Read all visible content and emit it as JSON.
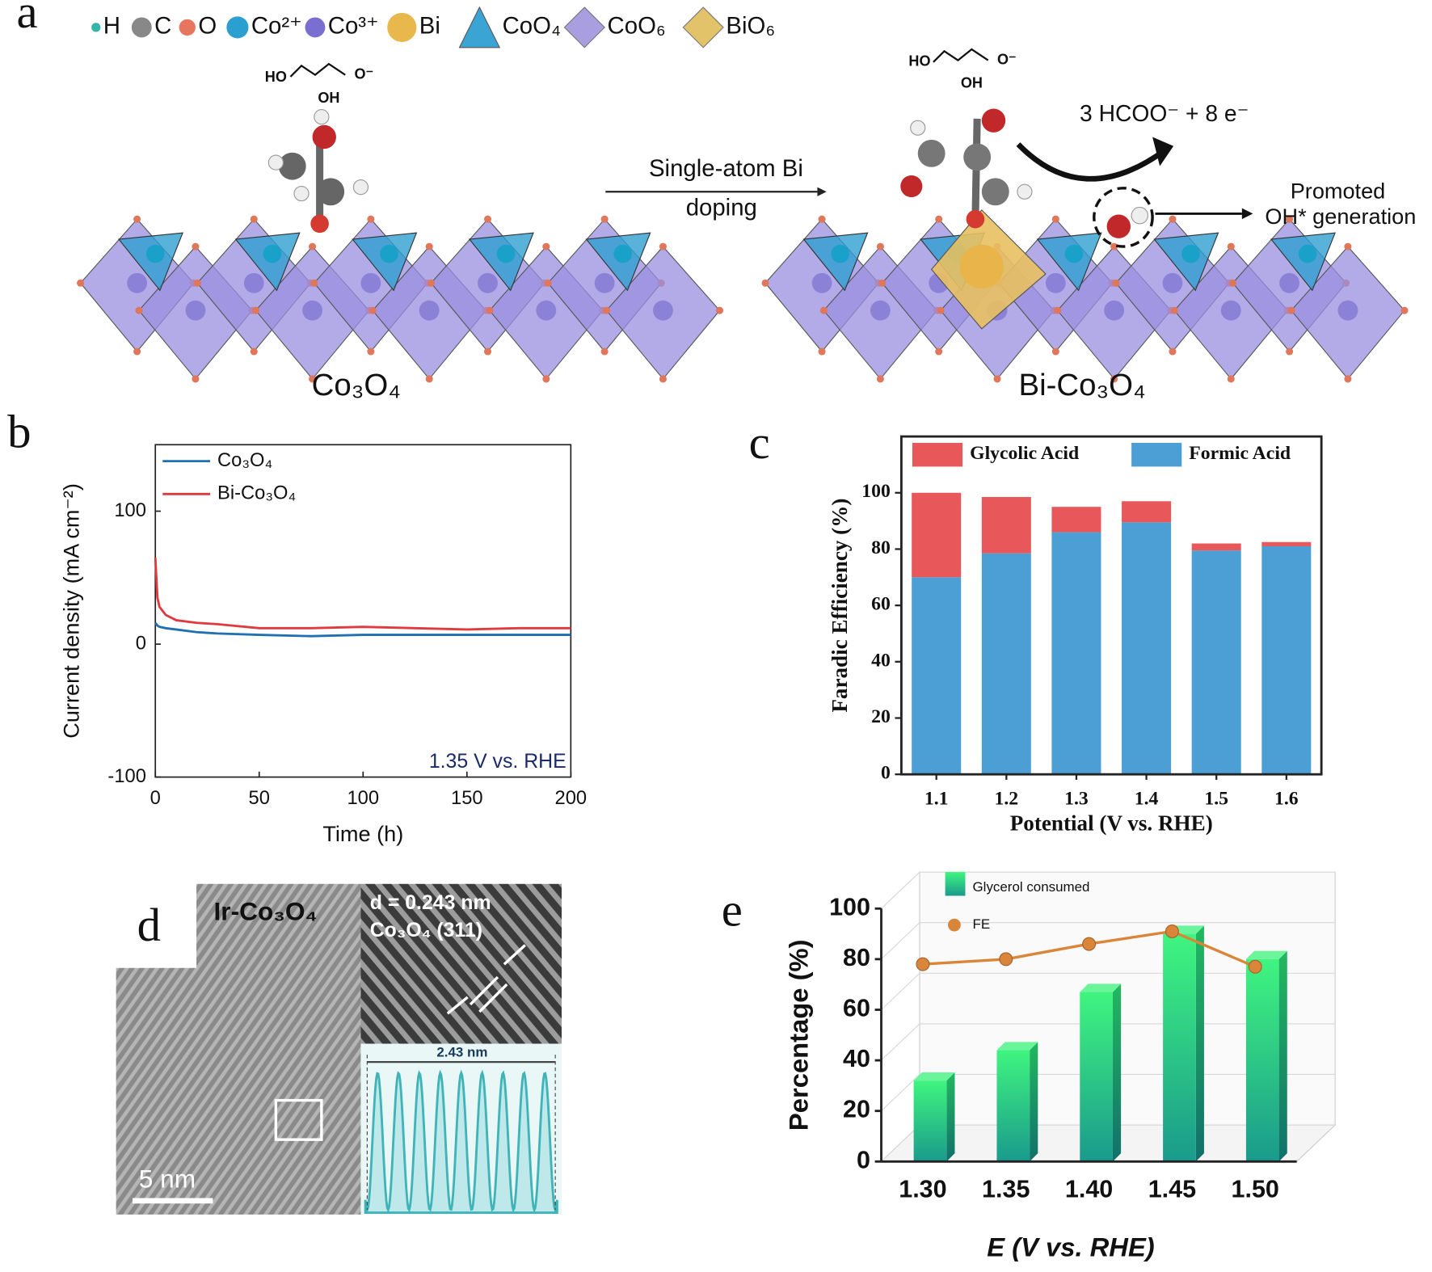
{
  "figure": {
    "panel_labels": [
      "a",
      "b",
      "c",
      "d",
      "e"
    ]
  },
  "panel_a": {
    "legend": [
      "H",
      "C",
      "O",
      "Co²⁺",
      "Co³⁺",
      "Bi",
      "CoO₄",
      "CoO₆",
      "BiO₆"
    ],
    "molecule": [
      "HO",
      "OH",
      "O⁻"
    ],
    "left_label": "Co₃O₄",
    "right_label": "Bi-Co₃O₄",
    "arrow_label": [
      "Single-atom Bi",
      "doping"
    ],
    "product": "3 HCOO⁻ + 8 e⁻",
    "note": [
      "Promoted",
      "OH* generation"
    ]
  },
  "panel_d": {
    "labels": [
      "Ir-Co₃O₄",
      "d = 0.243 nm",
      "Co₃O₄ (311)",
      "2.43 nm",
      "5 nm"
    ]
  },
  "chart_data": [
    {
      "type": "line",
      "xlabel": "Time (h)",
      "ylabel": "Current density (mA cm⁻²)",
      "annotation": "1.35 V vs. RHE",
      "x": [
        0,
        1,
        2,
        5,
        10,
        20,
        30,
        50,
        75,
        100,
        125,
        150,
        175,
        200
      ],
      "xlim": [
        0,
        200
      ],
      "xticks": [
        0,
        50,
        100,
        150,
        200
      ],
      "ylim": [
        -100,
        150
      ],
      "yticks": [
        -100,
        0,
        100
      ],
      "legend": "upper left",
      "series": [
        {
          "name": "Co₃O₄",
          "color": "#1f6fb2",
          "values": [
            16,
            14,
            13,
            12,
            11,
            9,
            8,
            7,
            6,
            7,
            7,
            7,
            7,
            7
          ]
        },
        {
          "name": "Bi-Co₃O₄",
          "color": "#e03a3e",
          "values": [
            65,
            35,
            28,
            22,
            18,
            16,
            15,
            12,
            12,
            13,
            12,
            11,
            12,
            12
          ]
        }
      ]
    },
    {
      "type": "stacked_bar",
      "xlabel": "Potential (V vs. RHE)",
      "ylabel": "Faradic Efficiency (%)",
      "categories": [
        "1.1",
        "1.2",
        "1.3",
        "1.4",
        "1.5",
        "1.6"
      ],
      "ylim": [
        0,
        120
      ],
      "yticks": [
        0,
        20,
        40,
        60,
        80,
        100
      ],
      "legend": "top",
      "series": [
        {
          "name": "Formic Acid",
          "color": "#4b9fd5",
          "values": [
            70,
            78.5,
            86,
            89.5,
            79.5,
            81
          ]
        },
        {
          "name": "Glycolic Acid",
          "color": "#e8585b",
          "values": [
            30,
            20,
            9,
            7.5,
            2.5,
            1.5
          ]
        }
      ]
    },
    {
      "type": "bar_line_3d",
      "xlabel": "E (V vs. RHE)",
      "ylabel": "Percentage (%)",
      "categories": [
        "1.30",
        "1.35",
        "1.40",
        "1.45",
        "1.50"
      ],
      "ylim": [
        0,
        100
      ],
      "yticks": [
        0,
        20,
        40,
        60,
        80,
        100
      ],
      "grid": true,
      "legend": "upper left",
      "series": [
        {
          "name": "Glycerol consumed",
          "kind": "bar",
          "color": "#2fe07c",
          "values": [
            32,
            44,
            67,
            90,
            80
          ]
        },
        {
          "name": "FE",
          "kind": "line",
          "color": "#d9863a",
          "values": [
            78,
            80,
            86,
            91,
            77
          ]
        }
      ]
    }
  ]
}
